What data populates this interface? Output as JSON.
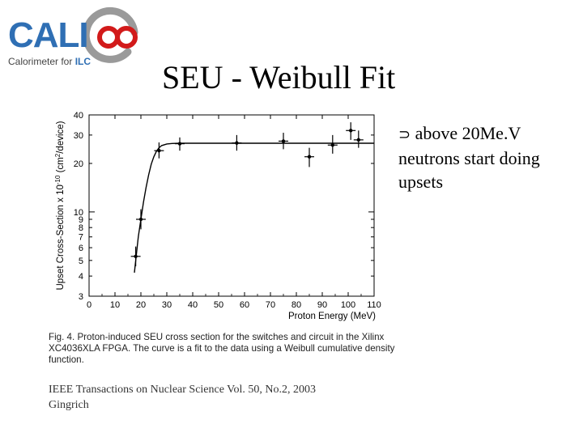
{
  "logo": {
    "letters": "CALICE",
    "subtitle_prefix": "Calorimeter for ",
    "subtitle_highlight": "ILC"
  },
  "slide": {
    "title": "SEU - Weibull Fit",
    "bullet_symbol": "⊃",
    "bullet_text": " above 20Me.V neutrons start doing upsets"
  },
  "caption": {
    "fig_label": "Fig. 4.",
    "text": "   Proton-induced SEU cross section for the switches and circuit in the Xilinx XC4036XLA FPGA. The curve is a fit to the data using a Weibull cumulative density function."
  },
  "reference": {
    "line1": "IEEE Transactions on Nuclear Science Vol. 50, No.2, 2003",
    "line2": "Gingrich"
  },
  "chart_data": {
    "type": "scatter",
    "title": "",
    "xlabel": "Proton Energy (MeV)",
    "ylabel": "Upset Cross-Section x 10",
    "ylabel_exponent": "-10",
    "ylabel_units": "(cm",
    "ylabel_units_sup": "2",
    "ylabel_units_end": "/device)",
    "x_scale": "linear",
    "y_scale": "log",
    "xlim": [
      0,
      110
    ],
    "ylim": [
      3,
      40
    ],
    "x_ticks": [
      "0",
      "10",
      "20",
      "30",
      "40",
      "50",
      "60",
      "70",
      "80",
      "90",
      "100",
      "110"
    ],
    "x_tick_values": [
      0,
      10,
      20,
      30,
      40,
      50,
      60,
      70,
      80,
      90,
      100,
      110
    ],
    "y_tick_values": [
      3,
      4,
      5,
      6,
      7,
      8,
      9,
      10,
      20,
      30,
      40
    ],
    "y_ticks": [
      "3",
      "4",
      "5",
      "6",
      "7",
      "8",
      "9",
      "10",
      "20",
      "30",
      "40"
    ],
    "points": [
      {
        "x": 18,
        "y": 5.3,
        "err_lo": 4.6,
        "err_hi": 6.1
      },
      {
        "x": 20,
        "y": 9.0,
        "err_lo": 7.8,
        "err_hi": 10.4
      },
      {
        "x": 27,
        "y": 24.0,
        "err_lo": 21.5,
        "err_hi": 27.0
      },
      {
        "x": 35,
        "y": 26.5,
        "err_lo": 24.0,
        "err_hi": 29.0
      },
      {
        "x": 57,
        "y": 26.8,
        "err_lo": 24.0,
        "err_hi": 30.0
      },
      {
        "x": 75,
        "y": 27.5,
        "err_lo": 24.5,
        "err_hi": 31.0
      },
      {
        "x": 85,
        "y": 22.0,
        "err_lo": 19.0,
        "err_hi": 25.0
      },
      {
        "x": 94,
        "y": 26.0,
        "err_lo": 23.0,
        "err_hi": 30.0
      },
      {
        "x": 101,
        "y": 32.0,
        "err_lo": 28.0,
        "err_hi": 36.0
      },
      {
        "x": 104,
        "y": 28.0,
        "err_lo": 25.0,
        "err_hi": 32.0
      }
    ],
    "fit": {
      "name": "Weibull fit",
      "x": [
        17.5,
        18,
        19,
        20,
        21,
        22,
        23,
        24,
        25,
        26,
        27,
        28,
        30,
        32,
        35,
        40,
        50,
        60,
        80,
        100,
        110
      ],
      "y": [
        4.2,
        5.0,
        7.0,
        9.0,
        11.5,
        14.2,
        17.0,
        19.8,
        22.0,
        23.8,
        25.0,
        25.8,
        26.4,
        26.6,
        26.7,
        26.7,
        26.7,
        26.7,
        26.7,
        26.7,
        26.7
      ]
    },
    "grid": false,
    "legend": "none"
  }
}
